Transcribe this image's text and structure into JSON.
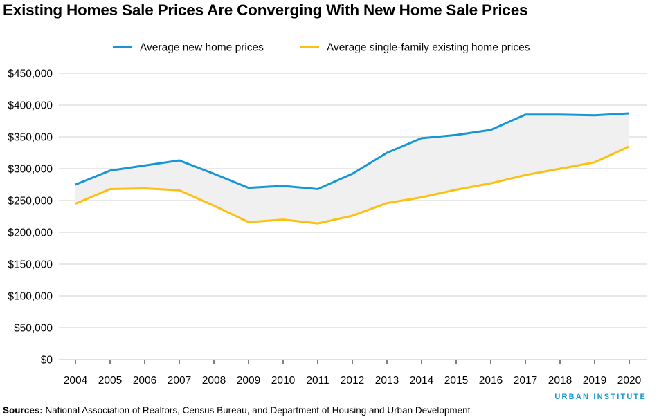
{
  "chart_data": {
    "type": "line",
    "title": "Existing Homes Sale Prices Are Converging With New Home Sale Prices",
    "xlabel": "",
    "ylabel": "",
    "x": [
      2004,
      2005,
      2006,
      2007,
      2008,
      2009,
      2010,
      2011,
      2012,
      2013,
      2014,
      2015,
      2016,
      2017,
      2018,
      2019,
      2020
    ],
    "ylim": [
      0,
      450000
    ],
    "yticks": [
      0,
      50000,
      100000,
      150000,
      200000,
      250000,
      300000,
      350000,
      400000,
      450000
    ],
    "ytick_labels": [
      "$0",
      "$50,000",
      "$100,000",
      "$150,000",
      "$200,000",
      "$250,000",
      "$300,000",
      "$350,000",
      "$400,000",
      "$450,000"
    ],
    "grid": true,
    "legend_position": "top",
    "shaded_area_between_series": true,
    "series": [
      {
        "name": "Average new home prices",
        "color": "#1696d2",
        "values": [
          275000,
          297000,
          305000,
          313000,
          292000,
          270000,
          273000,
          268000,
          292000,
          325000,
          348000,
          353000,
          361000,
          385000,
          385000,
          384000,
          387000
        ]
      },
      {
        "name": "Average single-family existing home prices",
        "color": "#fdbf11",
        "values": [
          245000,
          268000,
          269000,
          266000,
          242000,
          216000,
          220000,
          214000,
          226000,
          246000,
          255000,
          267000,
          277000,
          290000,
          300000,
          310000,
          335000
        ]
      }
    ],
    "fill_color": "#f0f0f0"
  },
  "footer": {
    "sources_label": "Sources:",
    "sources_text": " National Association of Realtors, Census Bureau, and Department of Housing and Urban Development",
    "logo": "URBAN INSTITUTE"
  }
}
